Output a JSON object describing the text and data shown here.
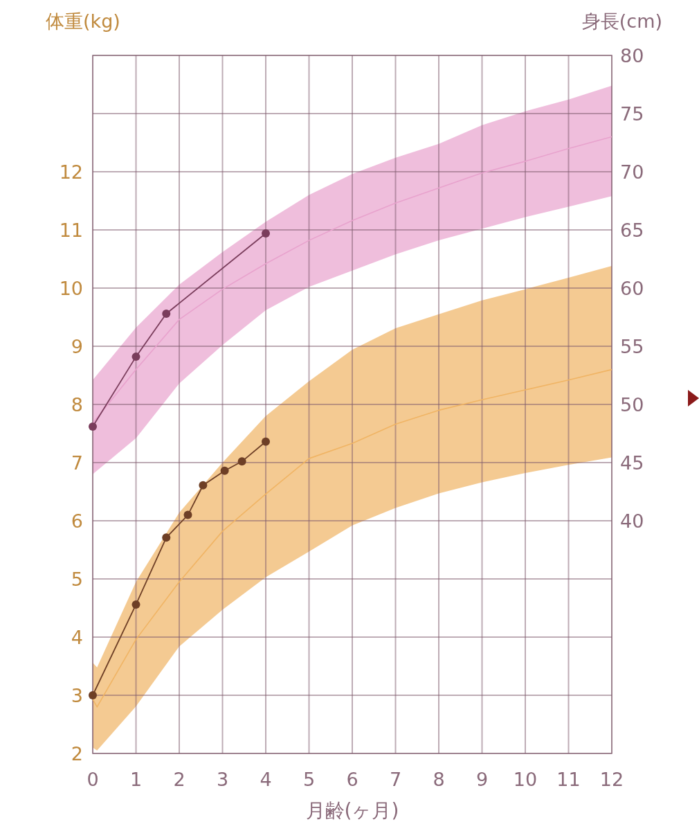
{
  "chart_data": {
    "type": "line",
    "xlabel": "月齢(ヶ月)",
    "ylabel": "体重(kg)",
    "y2label": "身長(cm)",
    "xlim": [
      0,
      12
    ],
    "xticks": [
      0,
      1,
      2,
      3,
      4,
      5,
      6,
      7,
      8,
      9,
      10,
      11,
      12
    ],
    "ylim": [
      2,
      14
    ],
    "yticks": [
      2,
      3,
      4,
      5,
      6,
      7,
      8,
      9,
      10,
      11,
      12,
      {
        "value": 13,
        "label": null
      },
      {
        "value": 14,
        "label": null
      }
    ],
    "y2lim": [
      20,
      80
    ],
    "y2ticks": [
      40,
      45,
      50,
      55,
      60,
      65,
      70,
      75,
      80
    ],
    "grid": true,
    "series": [
      {
        "type": "line",
        "axis": "y2",
        "color": "#e8a2cd",
        "x": [
          0,
          1,
          2,
          3,
          4,
          5,
          6,
          7,
          8,
          9,
          10,
          11,
          12
        ],
        "values": [
          48.4,
          53.0,
          57.3,
          59.9,
          62.1,
          64.1,
          65.8,
          67.3,
          68.6,
          69.9,
          70.9,
          72.0,
          73.0
        ],
        "lower": [
          44.0,
          47.1,
          51.8,
          55.1,
          58.1,
          60.1,
          61.5,
          62.9,
          64.1,
          65.1,
          66.1,
          67.0,
          67.9
        ],
        "upper": [
          52.1,
          56.6,
          60.3,
          63.1,
          65.7,
          68.0,
          69.8,
          71.2,
          72.4,
          74.0,
          75.2,
          76.2,
          77.4
        ]
      },
      {
        "type": "line",
        "color": "#f0b464",
        "x": [
          0,
          0.1,
          1,
          2,
          3,
          4,
          5,
          6,
          7,
          8,
          9,
          10,
          11,
          12
        ],
        "values": [
          2.93,
          2.8,
          3.96,
          4.95,
          5.82,
          6.46,
          7.07,
          7.33,
          7.66,
          7.9,
          8.08,
          8.25,
          8.42,
          8.6
        ],
        "lower": [
          2.1,
          2.05,
          2.81,
          3.84,
          4.47,
          5.03,
          5.47,
          5.92,
          6.22,
          6.47,
          6.66,
          6.82,
          6.96,
          7.09
        ],
        "upper": [
          3.56,
          3.48,
          4.95,
          6.14,
          7.0,
          7.8,
          8.4,
          8.94,
          9.31,
          9.55,
          9.79,
          9.98,
          10.18,
          10.38
        ]
      },
      {
        "type": "line",
        "axis": "y2",
        "color": "#7a3d5c",
        "marker": "circle",
        "x": [
          0,
          1,
          1.7,
          4
        ],
        "values": [
          48.1,
          54.1,
          57.8,
          64.7
        ]
      },
      {
        "type": "line",
        "color": "#6e3f26",
        "marker": "circle",
        "x": [
          0,
          1,
          1.7,
          2.2,
          2.55,
          3.05,
          3.45,
          4
        ],
        "values": [
          3.0,
          4.56,
          5.71,
          6.1,
          6.61,
          6.86,
          7.02,
          7.36
        ]
      }
    ]
  }
}
